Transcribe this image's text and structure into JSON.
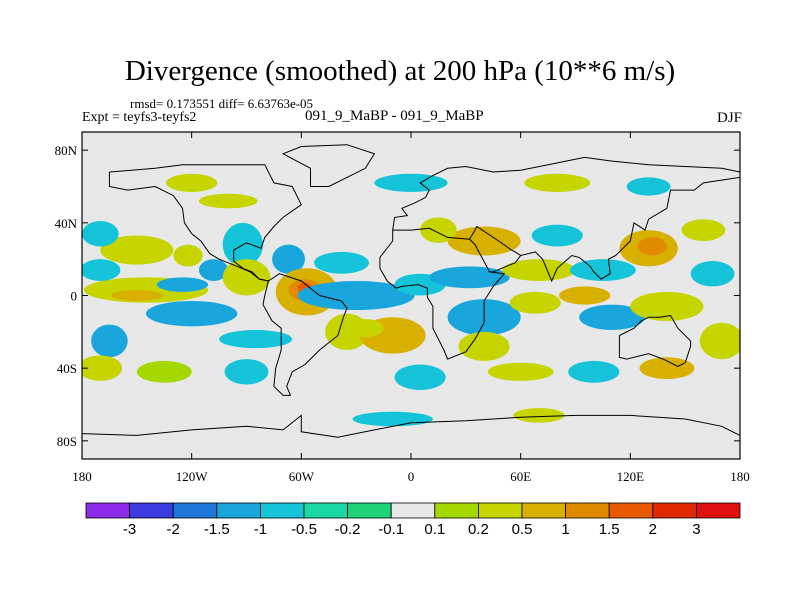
{
  "chart_data": {
    "type": "heatmap",
    "title": "Divergence (smoothed) at 200 hPa (10**6 m/s)",
    "stats": "rmsd= 0.173551  diff= 6.63763e-05",
    "experiment": "Expt = teyfs3-teyfs2",
    "cases": "091_9_MaBP - 091_9_MaBP",
    "season": "DJF",
    "x_ticks": [
      {
        "value": -180,
        "label": "180"
      },
      {
        "value": -120,
        "label": "120W"
      },
      {
        "value": -60,
        "label": "60W"
      },
      {
        "value": 0,
        "label": "0"
      },
      {
        "value": 60,
        "label": "60E"
      },
      {
        "value": 120,
        "label": "120E"
      },
      {
        "value": 180,
        "label": "180"
      }
    ],
    "y_ticks": [
      {
        "value": 80,
        "label": "80N"
      },
      {
        "value": 40,
        "label": "40N"
      },
      {
        "value": 0,
        "label": "0"
      },
      {
        "value": -40,
        "label": "40S"
      },
      {
        "value": -80,
        "label": "80S"
      }
    ],
    "xlim": [
      -180,
      180
    ],
    "ylim": [
      -90,
      90
    ],
    "colorbar": {
      "labels": [
        "-3",
        "-2",
        "-1.5",
        "-1",
        "-0.5",
        "-0.2",
        "-0.1",
        "0.1",
        "0.2",
        "0.5",
        "1",
        "1.5",
        "2",
        "3"
      ],
      "colors": [
        "#8c2ce8",
        "#3b3be0",
        "#1e78d8",
        "#19a6dc",
        "#16c4d9",
        "#1ad7a6",
        "#1fd27a",
        "#e8e8e8",
        "#a4d800",
        "#c6d400",
        "#d8b000",
        "#e08a00",
        "#e85a00",
        "#e02800",
        "#e01010"
      ]
    },
    "features": [
      {
        "lon": -145,
        "lat": 3,
        "rx": 34,
        "ry": 7,
        "bin": 9
      },
      {
        "lon": -150,
        "lat": 0,
        "rx": 14,
        "ry": 3,
        "bin": 10
      },
      {
        "lon": -120,
        "lat": -10,
        "rx": 25,
        "ry": 7,
        "bin": 3
      },
      {
        "lon": -125,
        "lat": 6,
        "rx": 14,
        "ry": 4,
        "bin": 3
      },
      {
        "lon": -170,
        "lat": 14,
        "rx": 11,
        "ry": 6,
        "bin": 4
      },
      {
        "lon": -150,
        "lat": 25,
        "rx": 20,
        "ry": 8,
        "bin": 9
      },
      {
        "lon": -122,
        "lat": 22,
        "rx": 8,
        "ry": 6,
        "bin": 9
      },
      {
        "lon": -170,
        "lat": 34,
        "rx": 10,
        "ry": 7,
        "bin": 4
      },
      {
        "lon": -165,
        "lat": -25,
        "rx": 10,
        "ry": 9,
        "bin": 3
      },
      {
        "lon": -170,
        "lat": -40,
        "rx": 12,
        "ry": 7,
        "bin": 9
      },
      {
        "lon": -135,
        "lat": -42,
        "rx": 15,
        "ry": 6,
        "bin": 8
      },
      {
        "lon": -90,
        "lat": -42,
        "rx": 12,
        "ry": 7,
        "bin": 4
      },
      {
        "lon": -85,
        "lat": -24,
        "rx": 20,
        "ry": 5,
        "bin": 4
      },
      {
        "lon": -108,
        "lat": 14,
        "rx": 8,
        "ry": 6,
        "bin": 3
      },
      {
        "lon": -100,
        "lat": 52,
        "rx": 16,
        "ry": 4,
        "bin": 9
      },
      {
        "lon": -92,
        "lat": 28,
        "rx": 11,
        "ry": 12,
        "bin": 4
      },
      {
        "lon": -67,
        "lat": 20,
        "rx": 9,
        "ry": 8,
        "bin": 3
      },
      {
        "lon": -90,
        "lat": 10,
        "rx": 13,
        "ry": 10,
        "bin": 9
      },
      {
        "lon": -57,
        "lat": 2,
        "rx": 17,
        "ry": 13,
        "bin": 10
      },
      {
        "lon": -58,
        "lat": 3,
        "rx": 9,
        "ry": 6,
        "bin": 11
      },
      {
        "lon": -58,
        "lat": 4,
        "rx": 4,
        "ry": 3,
        "bin": 12
      },
      {
        "lon": -30,
        "lat": 0,
        "rx": 32,
        "ry": 8,
        "bin": 3
      },
      {
        "lon": -18,
        "lat": -4,
        "rx": 10,
        "ry": 3,
        "bin": 3
      },
      {
        "lon": -38,
        "lat": 18,
        "rx": 15,
        "ry": 6,
        "bin": 4
      },
      {
        "lon": -35,
        "lat": -20,
        "rx": 12,
        "ry": 10,
        "bin": 9
      },
      {
        "lon": -10,
        "lat": -22,
        "rx": 18,
        "ry": 10,
        "bin": 10
      },
      {
        "lon": -25,
        "lat": -18,
        "rx": 10,
        "ry": 5,
        "bin": 9
      },
      {
        "lon": 5,
        "lat": -45,
        "rx": 14,
        "ry": 7,
        "bin": 4
      },
      {
        "lon": 40,
        "lat": -12,
        "rx": 20,
        "ry": 10,
        "bin": 3
      },
      {
        "lon": 5,
        "lat": 6,
        "rx": 14,
        "ry": 6,
        "bin": 4
      },
      {
        "lon": 32,
        "lat": 10,
        "rx": 22,
        "ry": 6,
        "bin": 3
      },
      {
        "lon": 40,
        "lat": 30,
        "rx": 20,
        "ry": 8,
        "bin": 10
      },
      {
        "lon": 15,
        "lat": 36,
        "rx": 10,
        "ry": 7,
        "bin": 9
      },
      {
        "lon": 80,
        "lat": 33,
        "rx": 14,
        "ry": 6,
        "bin": 4
      },
      {
        "lon": 70,
        "lat": 14,
        "rx": 20,
        "ry": 6,
        "bin": 9
      },
      {
        "lon": 68,
        "lat": -4,
        "rx": 14,
        "ry": 6,
        "bin": 9
      },
      {
        "lon": 105,
        "lat": 14,
        "rx": 18,
        "ry": 6,
        "bin": 4
      },
      {
        "lon": 110,
        "lat": -12,
        "rx": 18,
        "ry": 7,
        "bin": 3
      },
      {
        "lon": 95,
        "lat": 0,
        "rx": 14,
        "ry": 5,
        "bin": 10
      },
      {
        "lon": 130,
        "lat": 26,
        "rx": 16,
        "ry": 10,
        "bin": 10
      },
      {
        "lon": 132,
        "lat": 27,
        "rx": 8,
        "ry": 5,
        "bin": 11
      },
      {
        "lon": 140,
        "lat": -6,
        "rx": 20,
        "ry": 8,
        "bin": 9
      },
      {
        "lon": 165,
        "lat": 12,
        "rx": 12,
        "ry": 7,
        "bin": 4
      },
      {
        "lon": 170,
        "lat": -25,
        "rx": 12,
        "ry": 10,
        "bin": 9
      },
      {
        "lon": 160,
        "lat": 36,
        "rx": 12,
        "ry": 6,
        "bin": 9
      },
      {
        "lon": 100,
        "lat": -42,
        "rx": 14,
        "ry": 6,
        "bin": 4
      },
      {
        "lon": 140,
        "lat": -40,
        "rx": 15,
        "ry": 6,
        "bin": 10
      },
      {
        "lon": 60,
        "lat": -42,
        "rx": 18,
        "ry": 5,
        "bin": 9
      },
      {
        "lon": 40,
        "lat": -28,
        "rx": 14,
        "ry": 8,
        "bin": 9
      },
      {
        "lon": 0,
        "lat": 62,
        "rx": 20,
        "ry": 5,
        "bin": 4
      },
      {
        "lon": 80,
        "lat": 62,
        "rx": 18,
        "ry": 5,
        "bin": 9
      },
      {
        "lon": -120,
        "lat": 62,
        "rx": 14,
        "ry": 5,
        "bin": 9
      },
      {
        "lon": 130,
        "lat": 60,
        "rx": 12,
        "ry": 5,
        "bin": 4
      },
      {
        "lon": -10,
        "lat": -68,
        "rx": 22,
        "ry": 4,
        "bin": 4
      },
      {
        "lon": 70,
        "lat": -66,
        "rx": 14,
        "ry": 4,
        "bin": 9
      }
    ],
    "coastlines": [
      [
        [
          -165,
          68
        ],
        [
          -140,
          70
        ],
        [
          -125,
          72
        ],
        [
          -95,
          72
        ],
        [
          -80,
          72
        ],
        [
          -75,
          62
        ],
        [
          -65,
          60
        ],
        [
          -60,
          50
        ],
        [
          -70,
          43
        ],
        [
          -75,
          38
        ],
        [
          -80,
          32
        ],
        [
          -82,
          26
        ],
        [
          -90,
          29
        ],
        [
          -97,
          25
        ],
        [
          -97,
          19
        ],
        [
          -92,
          15
        ],
        [
          -87,
          13
        ],
        [
          -83,
          9
        ],
        [
          -78,
          8
        ]
      ],
      [
        [
          -165,
          68
        ],
        [
          -165,
          60
        ],
        [
          -155,
          58
        ],
        [
          -140,
          60
        ],
        [
          -130,
          55
        ],
        [
          -125,
          48
        ],
        [
          -124,
          40
        ],
        [
          -120,
          34
        ],
        [
          -115,
          30
        ],
        [
          -110,
          23
        ],
        [
          -105,
          20
        ],
        [
          -95,
          16
        ],
        [
          -88,
          13
        ],
        [
          -83,
          9
        ],
        [
          -78,
          8
        ]
      ],
      [
        [
          -78,
          8
        ],
        [
          -80,
          0
        ],
        [
          -81,
          -5
        ],
        [
          -76,
          -14
        ],
        [
          -71,
          -18
        ],
        [
          -71,
          -30
        ],
        [
          -74,
          -40
        ],
        [
          -75,
          -50
        ],
        [
          -70,
          -55
        ],
        [
          -66,
          -55
        ],
        [
          -68,
          -50
        ],
        [
          -65,
          -42
        ],
        [
          -58,
          -38
        ],
        [
          -50,
          -30
        ],
        [
          -40,
          -22
        ],
        [
          -37,
          -12
        ],
        [
          -35,
          -7
        ],
        [
          -38,
          -3
        ],
        [
          -50,
          0
        ],
        [
          -60,
          8
        ],
        [
          -72,
          12
        ],
        [
          -78,
          8
        ]
      ],
      [
        [
          -55,
          60
        ],
        [
          -45,
          60
        ],
        [
          -25,
          70
        ],
        [
          -20,
          78
        ],
        [
          -35,
          83
        ],
        [
          -60,
          82
        ],
        [
          -70,
          78
        ],
        [
          -55,
          70
        ],
        [
          -55,
          60
        ]
      ],
      [
        [
          -10,
          36
        ],
        [
          -9,
          43
        ],
        [
          -2,
          44
        ],
        [
          -5,
          48
        ],
        [
          2,
          51
        ],
        [
          8,
          54
        ],
        [
          10,
          58
        ],
        [
          5,
          62
        ],
        [
          12,
          66
        ],
        [
          20,
          70
        ],
        [
          30,
          71
        ],
        [
          45,
          68
        ],
        [
          60,
          69
        ],
        [
          75,
          72
        ],
        [
          95,
          76
        ],
        [
          110,
          74
        ],
        [
          130,
          72
        ],
        [
          150,
          71
        ],
        [
          170,
          70
        ],
        [
          180,
          68
        ]
      ],
      [
        [
          -17,
          15
        ],
        [
          -17,
          21
        ],
        [
          -10,
          30
        ],
        [
          -10,
          36
        ],
        [
          0,
          36
        ],
        [
          10,
          37
        ],
        [
          20,
          32
        ],
        [
          32,
          31
        ],
        [
          35,
          28
        ],
        [
          43,
          13
        ],
        [
          51,
          12
        ],
        [
          45,
          5
        ],
        [
          40,
          -3
        ],
        [
          40,
          -15
        ],
        [
          35,
          -24
        ],
        [
          30,
          -31
        ],
        [
          20,
          -35
        ],
        [
          18,
          -30
        ],
        [
          12,
          -18
        ],
        [
          12,
          -6
        ],
        [
          9,
          -1
        ],
        [
          9,
          4
        ],
        [
          4,
          6
        ],
        [
          -5,
          5
        ],
        [
          -8,
          4
        ],
        [
          -13,
          8
        ],
        [
          -17,
          15
        ]
      ],
      [
        [
          32,
          31
        ],
        [
          35,
          36
        ],
        [
          36,
          38
        ],
        [
          48,
          30
        ],
        [
          55,
          25
        ],
        [
          57,
          24
        ],
        [
          60,
          22
        ],
        [
          57,
          18
        ],
        [
          52,
          16
        ],
        [
          45,
          13
        ],
        [
          43,
          13
        ]
      ],
      [
        [
          60,
          22
        ],
        [
          68,
          24
        ],
        [
          72,
          20
        ],
        [
          77,
          8
        ],
        [
          80,
          15
        ],
        [
          88,
          22
        ],
        [
          92,
          21
        ],
        [
          98,
          16
        ],
        [
          100,
          13
        ],
        [
          104,
          9
        ],
        [
          109,
          12
        ],
        [
          108,
          20
        ],
        [
          112,
          22
        ],
        [
          120,
          30
        ],
        [
          122,
          40
        ],
        [
          128,
          36
        ],
        [
          130,
          42
        ],
        [
          140,
          48
        ],
        [
          142,
          58
        ],
        [
          155,
          58
        ],
        [
          160,
          62
        ],
        [
          180,
          65
        ]
      ],
      [
        [
          114,
          -22
        ],
        [
          114,
          -34
        ],
        [
          118,
          -35
        ],
        [
          130,
          -32
        ],
        [
          138,
          -35
        ],
        [
          146,
          -39
        ],
        [
          150,
          -37
        ],
        [
          153,
          -28
        ],
        [
          153,
          -25
        ],
        [
          146,
          -18
        ],
        [
          142,
          -11
        ],
        [
          136,
          -12
        ],
        [
          130,
          -12
        ],
        [
          126,
          -14
        ],
        [
          122,
          -18
        ],
        [
          114,
          -22
        ]
      ],
      [
        [
          -180,
          -76
        ],
        [
          -150,
          -77
        ],
        [
          -120,
          -74
        ],
        [
          -90,
          -72
        ],
        [
          -70,
          -74
        ],
        [
          -60,
          -66
        ],
        [
          -60,
          -75
        ],
        [
          -40,
          -78
        ],
        [
          -20,
          -74
        ],
        [
          0,
          -70
        ],
        [
          30,
          -69
        ],
        [
          60,
          -67
        ],
        [
          90,
          -66
        ],
        [
          120,
          -66
        ],
        [
          150,
          -68
        ],
        [
          170,
          -72
        ],
        [
          180,
          -77
        ]
      ]
    ]
  }
}
